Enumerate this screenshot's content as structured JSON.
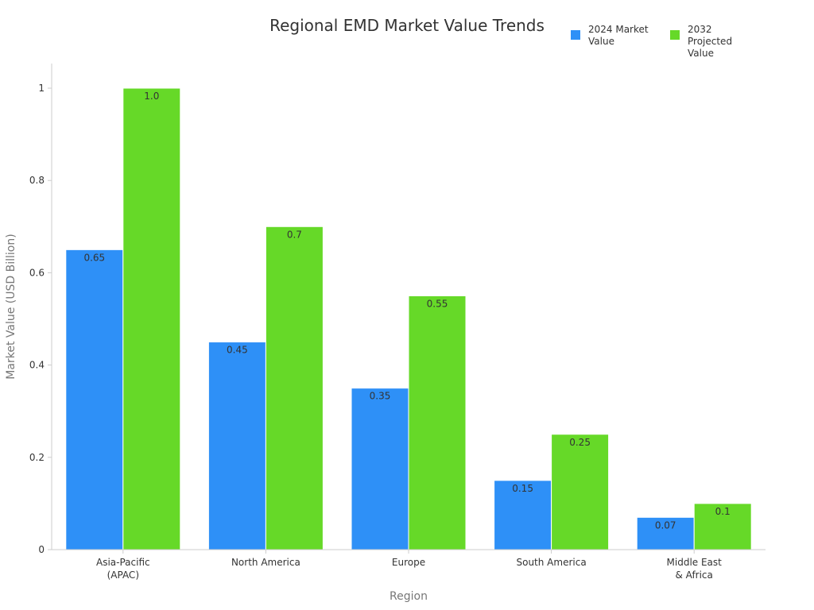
{
  "chart_data": {
    "type": "bar",
    "title": "Regional EMD Market Value Trends",
    "xlabel": "Region",
    "ylabel": "Market Value (USD Billion)",
    "categories": [
      [
        "Asia-Pacific",
        "(APAC)"
      ],
      [
        "North America"
      ],
      [
        "Europe"
      ],
      [
        "South America"
      ],
      [
        "Middle East",
        "& Africa"
      ]
    ],
    "series": [
      {
        "name": "2024 Market Value",
        "legend_lines": [
          "2024 Market",
          "Value"
        ],
        "color": "#2e90f7",
        "values": [
          0.65,
          0.45,
          0.35,
          0.15,
          0.07
        ],
        "labels": [
          "0.65",
          "0.45",
          "0.35",
          "0.15",
          "0.07"
        ]
      },
      {
        "name": "2032 Projected Value",
        "legend_lines": [
          "2032 Projected",
          "Value"
        ],
        "color": "#66d928",
        "values": [
          1.0,
          0.7,
          0.55,
          0.25,
          0.1
        ],
        "labels": [
          "1.0",
          "0.7",
          "0.55",
          "0.25",
          "0.1"
        ]
      }
    ],
    "ylim": [
      0,
      1.0
    ],
    "yticks": [
      0,
      0.2,
      0.4,
      0.6,
      0.8,
      1.0
    ],
    "ytick_labels": [
      "0",
      "0.2",
      "0.4",
      "0.6",
      "0.8",
      "1"
    ],
    "grid": false,
    "legend_position": "top-right"
  }
}
